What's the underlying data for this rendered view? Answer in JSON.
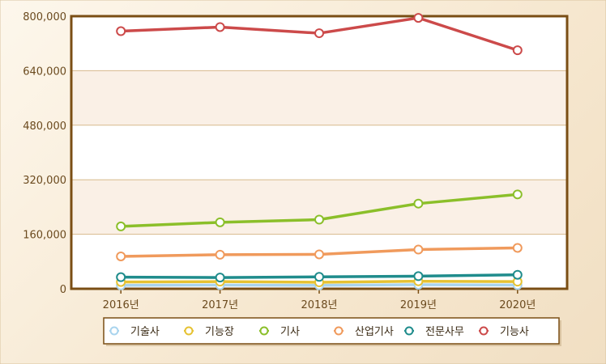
{
  "chart_data": {
    "type": "line",
    "title": "",
    "xlabel": "",
    "ylabel": "",
    "categories": [
      "2016년",
      "2017년",
      "2018년",
      "2019년",
      "2020년"
    ],
    "ylim": [
      0,
      800000
    ],
    "yticks": [
      "0",
      "160,000",
      "320,000",
      "480,000",
      "640,000",
      "800,000"
    ],
    "ytick_values": [
      0,
      160000,
      320000,
      480000,
      640000,
      800000
    ],
    "grid": true,
    "legend_position": "bottom",
    "series": [
      {
        "name": "기술사",
        "color": "#a9d4ee",
        "values": [
          10000,
          11000,
          10000,
          12000,
          11000
        ]
      },
      {
        "name": "기능장",
        "color": "#e6c232",
        "values": [
          20000,
          21000,
          19000,
          22000,
          21000
        ]
      },
      {
        "name": "기사",
        "color": "#8bbf2a",
        "values": [
          183000,
          195000,
          203000,
          250000,
          277000
        ]
      },
      {
        "name": "산업기사",
        "color": "#f09a5c",
        "values": [
          95000,
          100000,
          101000,
          115000,
          120000
        ]
      },
      {
        "name": "전문사무",
        "color": "#1f8c8c",
        "values": [
          34000,
          33000,
          35000,
          37000,
          41000
        ]
      },
      {
        "name": "기능사",
        "color": "#cc4a4a",
        "values": [
          756000,
          768000,
          750000,
          795000,
          700000
        ]
      }
    ]
  }
}
